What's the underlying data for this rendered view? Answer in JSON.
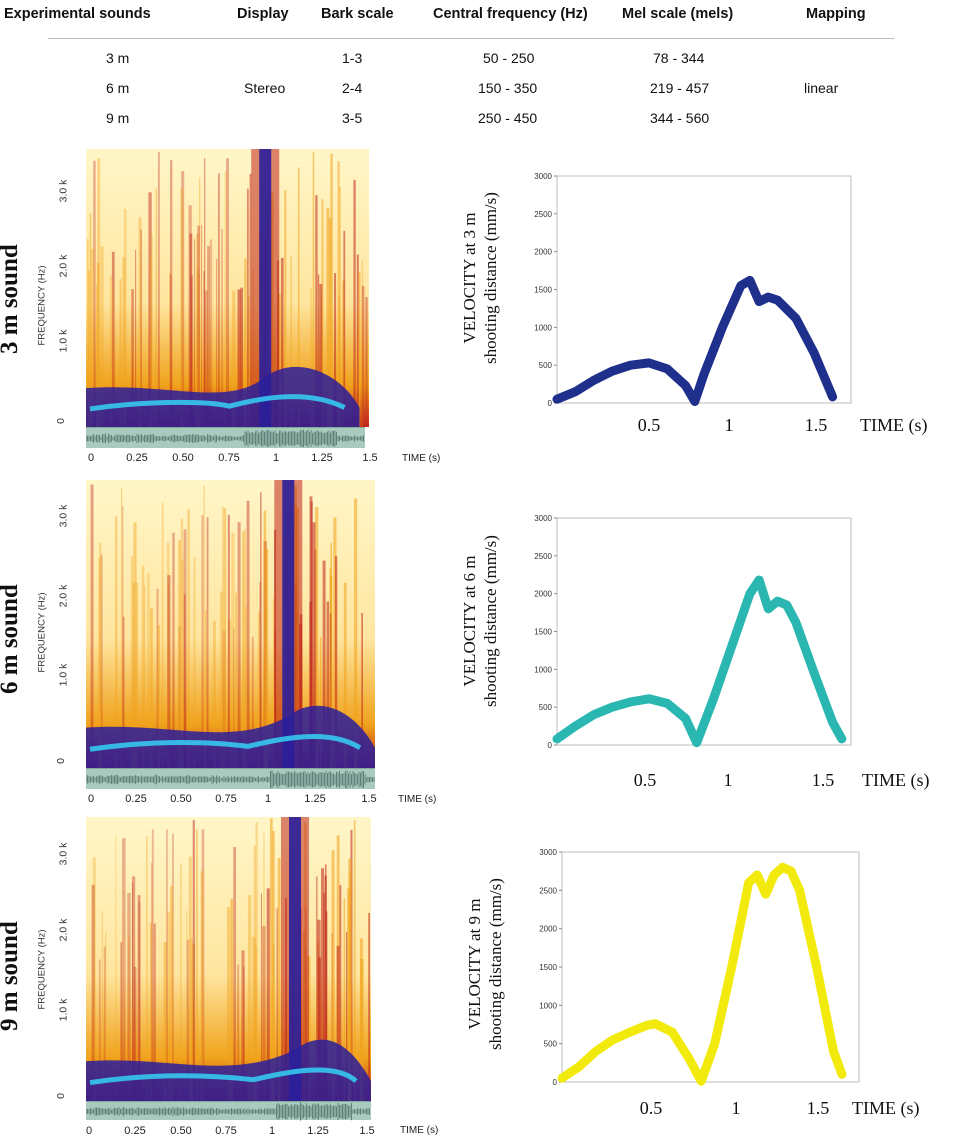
{
  "table": {
    "headers": [
      "Experimental sounds",
      "Display",
      "Bark scale",
      "Central frequency (Hz)",
      "Mel scale (mels)",
      "Mapping"
    ],
    "rows": [
      {
        "sound": "3 m",
        "display": "",
        "bark": "1-3",
        "central": "50 - 250",
        "mel": "78 - 344",
        "mapping": ""
      },
      {
        "sound": "6 m",
        "display": "Stereo",
        "bark": "2-4",
        "central": "150 - 350",
        "mel": "219 - 457",
        "mapping": "linear"
      },
      {
        "sound": "9 m",
        "display": "",
        "bark": "3-5",
        "central": "250 - 450",
        "mel": "344 - 560",
        "mapping": ""
      }
    ]
  },
  "spectrograms": {
    "freq_axis_title": "FREQUENCY (Hz)",
    "freq_ticks": [
      "0",
      "1.0 k",
      "2.0 k",
      "3.0 k"
    ],
    "time_ticks": [
      "0",
      "0.25",
      "0.50",
      "0.75",
      "1",
      "1.25",
      "1.5"
    ],
    "time_title": "TIME (s)",
    "panels": [
      {
        "label": "3 m sound",
        "onset_s": 0.95,
        "end_s": 1.45
      },
      {
        "label": "6 m sound",
        "onset_s": 1.05,
        "end_s": 1.55
      },
      {
        "label": "9 m sound",
        "onset_s": 1.1,
        "end_s": 1.5
      }
    ]
  },
  "colors": {
    "vel_3m": "#1f2f8c",
    "vel_6m": "#2ab7b2",
    "vel_9m": "#f2ea0c",
    "spec_low": "#fff6c8",
    "spec_mid": "#f0a21c",
    "spec_high": "#c0251a",
    "spec_peak": "#2a1f9a",
    "spec_band": "#35c8f0"
  },
  "chart_data": [
    {
      "type": "line",
      "title": "VELOCITY at 3 m",
      "ylabel_line1": "VELOCITY at 3 m",
      "ylabel_line2": "shooting distance (mm/s)",
      "xlabel": "TIME (s)",
      "xticks": [
        "0.5",
        "1",
        "1.5"
      ],
      "yticks": [
        "0",
        "500",
        "1000",
        "1500",
        "2000",
        "2500",
        "3000"
      ],
      "xlim": [
        0,
        1.6
      ],
      "ylim": [
        0,
        3000
      ],
      "x": [
        0,
        0.1,
        0.2,
        0.3,
        0.4,
        0.5,
        0.6,
        0.7,
        0.75,
        0.8,
        0.9,
        1.0,
        1.05,
        1.08,
        1.1,
        1.15,
        1.2,
        1.3,
        1.4,
        1.5
      ],
      "y": [
        50,
        150,
        300,
        420,
        500,
        530,
        450,
        230,
        20,
        380,
        1000,
        1550,
        1620,
        1450,
        1340,
        1400,
        1360,
        1120,
        660,
        80
      ]
    },
    {
      "type": "line",
      "title": "VELOCITY at 6 m",
      "ylabel_line1": "VELOCITY at 6 m",
      "ylabel_line2": "shooting distance (mm/s)",
      "xlabel": "TIME (s)",
      "xticks": [
        "0.5",
        "1",
        "1.5"
      ],
      "yticks": [
        "0",
        "500",
        "1000",
        "1500",
        "2000",
        "2500",
        "3000"
      ],
      "xlim": [
        0,
        1.6
      ],
      "ylim": [
        0,
        3000
      ],
      "x": [
        0,
        0.1,
        0.2,
        0.3,
        0.4,
        0.5,
        0.6,
        0.7,
        0.76,
        0.85,
        0.95,
        1.05,
        1.1,
        1.15,
        1.2,
        1.25,
        1.3,
        1.4,
        1.5,
        1.55
      ],
      "y": [
        80,
        250,
        400,
        500,
        570,
        610,
        550,
        350,
        30,
        600,
        1300,
        2000,
        2180,
        1800,
        1900,
        1850,
        1620,
        950,
        300,
        80
      ]
    },
    {
      "type": "line",
      "title": "VELOCITY at 9 m",
      "ylabel_line1": "VELOCITY at 9 m",
      "ylabel_line2": "shooting distance (mm/s)",
      "xlabel": "TIME (s)",
      "xticks": [
        "0.5",
        "1",
        "1.5"
      ],
      "yticks": [
        "0",
        "500",
        "1000",
        "1500",
        "2000",
        "2500",
        "3000"
      ],
      "xlim": [
        0,
        1.75
      ],
      "ylim": [
        0,
        3000
      ],
      "x": [
        0,
        0.1,
        0.2,
        0.3,
        0.4,
        0.5,
        0.55,
        0.65,
        0.75,
        0.82,
        0.9,
        1.0,
        1.1,
        1.15,
        1.2,
        1.25,
        1.3,
        1.35,
        1.4,
        1.5,
        1.6,
        1.65
      ],
      "y": [
        50,
        200,
        400,
        550,
        650,
        740,
        760,
        650,
        300,
        10,
        500,
        1500,
        2600,
        2700,
        2450,
        2700,
        2800,
        2750,
        2500,
        1500,
        400,
        100
      ]
    }
  ]
}
